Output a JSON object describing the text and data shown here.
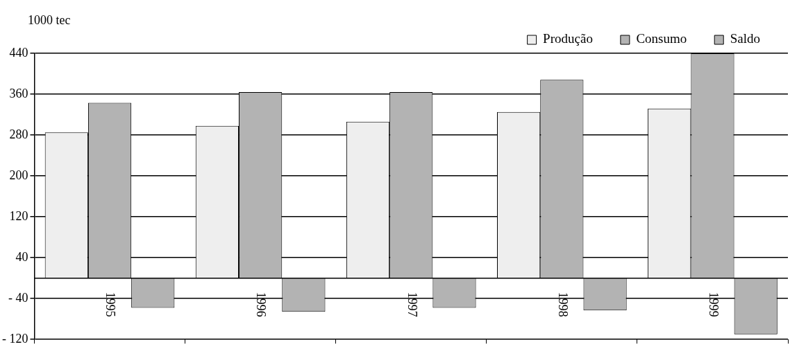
{
  "chart_data": {
    "type": "bar",
    "ylabel": "1000 tec",
    "categories": [
      "1995",
      "1996",
      "1997",
      "1998",
      "1999"
    ],
    "series": [
      {
        "name": "Produção",
        "color": "#eeeeee",
        "values": [
          285,
          298,
          306,
          325,
          332
        ]
      },
      {
        "name": "Consumo",
        "color": "#b3b3b3",
        "values": [
          343,
          364,
          364,
          388,
          440
        ]
      },
      {
        "name": "Saldo",
        "color": "#b3b3b3",
        "values": [
          -58,
          -66,
          -58,
          -63,
          -110
        ]
      }
    ],
    "ylim": [
      -120,
      440
    ],
    "yticks": [
      {
        "value": -120,
        "label": "- 120"
      },
      {
        "value": -40,
        "label": "- 40"
      },
      40,
      120,
      200,
      280,
      360,
      440
    ],
    "grid": "y",
    "legend": "top right"
  }
}
